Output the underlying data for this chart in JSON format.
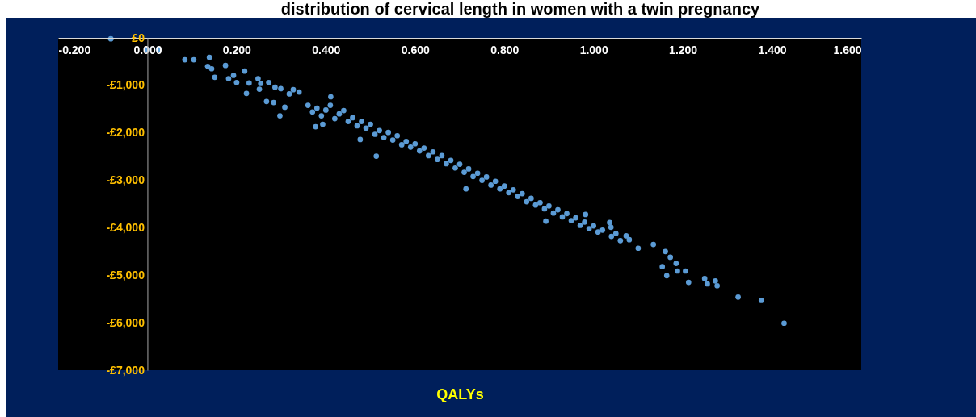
{
  "chart_data": {
    "type": "scatter",
    "title": "distribution of cervical length in women with a twin pregnancy",
    "xlabel": "QALYs",
    "xlim": [
      -0.2,
      1.6
    ],
    "xticks": [
      {
        "value": -0.2,
        "label": "-0.200"
      },
      {
        "value": 0,
        "label": "0.000"
      },
      {
        "value": 0.2,
        "label": "0.200"
      },
      {
        "value": 0.4,
        "label": "0.400"
      },
      {
        "value": 0.6,
        "label": "0.600"
      },
      {
        "value": 0.8,
        "label": "0.800"
      },
      {
        "value": 1,
        "label": "1.000"
      },
      {
        "value": 1.2,
        "label": "1.200"
      },
      {
        "value": 1.4,
        "label": "1.400"
      },
      {
        "value": 1.6,
        "label": "1.600"
      }
    ],
    "ylim": [
      -7000,
      0
    ],
    "yticks": [
      {
        "value": -7000,
        "label": "-£7,000"
      },
      {
        "value": -6000,
        "label": "-£6,000"
      },
      {
        "value": -5000,
        "label": "-£5,000"
      },
      {
        "value": -4000,
        "label": "-£4,000"
      },
      {
        "value": -3000,
        "label": "-£3,000"
      },
      {
        "value": -2000,
        "label": "-£2,000"
      },
      {
        "value": -1000,
        "label": "-£1,000"
      },
      {
        "value": 0,
        "label": "£0"
      }
    ],
    "series": [
      {
        "color": "#5b9bd5",
        "x": [
          -0.082,
          0.0,
          0.025,
          0.084,
          0.104,
          0.139,
          0.135,
          0.144,
          0.151,
          0.175,
          0.182,
          0.193,
          0.2,
          0.218,
          0.222,
          0.228,
          0.248,
          0.251,
          0.254,
          0.267,
          0.283,
          0.272,
          0.286,
          0.299,
          0.297,
          0.308,
          0.318,
          0.327,
          0.34,
          0.377,
          0.393,
          0.411,
          0.477,
          0.513,
          0.714,
          0.893,
          0.982,
          1.036,
          0.36,
          0.37,
          0.38,
          0.39,
          0.4,
          0.41,
          0.42,
          0.43,
          0.44,
          0.45,
          0.46,
          0.47,
          0.48,
          0.49,
          0.5,
          0.51,
          0.52,
          0.53,
          0.54,
          0.55,
          0.56,
          0.57,
          0.58,
          0.59,
          0.6,
          0.61,
          0.62,
          0.63,
          0.64,
          0.65,
          0.66,
          0.67,
          0.68,
          0.69,
          0.7,
          0.71,
          0.72,
          0.73,
          0.74,
          0.75,
          0.76,
          0.77,
          0.78,
          0.79,
          0.8,
          0.81,
          0.82,
          0.83,
          0.84,
          0.85,
          0.86,
          0.87,
          0.88,
          0.89,
          0.9,
          0.91,
          0.92,
          0.93,
          0.94,
          0.95,
          0.96,
          0.97,
          0.98,
          0.99,
          1.0,
          1.01,
          1.02,
          1.04,
          1.05,
          1.06,
          1.08,
          1.1,
          1.039,
          1.073,
          1.134,
          1.161,
          1.172,
          1.185,
          1.188,
          1.206,
          1.213,
          1.164,
          1.154,
          1.249,
          1.255,
          1.273,
          1.277,
          1.324,
          1.376,
          1.427
        ],
        "values": [
          -20,
          -240,
          -240,
          -460,
          -460,
          -410,
          -600,
          -650,
          -830,
          -580,
          -860,
          -790,
          -940,
          -700,
          -1170,
          -950,
          -860,
          -1080,
          -960,
          -1340,
          -1360,
          -940,
          -1040,
          -1070,
          -1640,
          -1460,
          -1180,
          -1090,
          -1140,
          -1870,
          -1820,
          -1240,
          -2140,
          -2490,
          -3180,
          -3860,
          -3720,
          -3890,
          -1420,
          -1560,
          -1480,
          -1640,
          -1520,
          -1420,
          -1700,
          -1600,
          -1530,
          -1760,
          -1680,
          -1850,
          -1760,
          -1900,
          -1820,
          -2030,
          -1950,
          -2100,
          -1990,
          -2150,
          -2060,
          -2250,
          -2180,
          -2300,
          -2230,
          -2380,
          -2320,
          -2480,
          -2400,
          -2560,
          -2480,
          -2650,
          -2580,
          -2740,
          -2660,
          -2830,
          -2760,
          -2920,
          -2850,
          -3000,
          -2930,
          -3100,
          -3020,
          -3180,
          -3120,
          -3260,
          -3200,
          -3340,
          -3280,
          -3450,
          -3380,
          -3520,
          -3470,
          -3600,
          -3540,
          -3690,
          -3620,
          -3770,
          -3700,
          -3850,
          -3790,
          -3950,
          -3880,
          -4020,
          -3960,
          -4090,
          -4050,
          -4180,
          -4120,
          -4270,
          -4250,
          -4430,
          -3990,
          -4170,
          -4350,
          -4500,
          -4620,
          -4750,
          -4910,
          -4910,
          -5150,
          -5010,
          -4820,
          -5070,
          -5180,
          -5120,
          -5220,
          -5460,
          -5530,
          -6010
        ]
      }
    ]
  }
}
